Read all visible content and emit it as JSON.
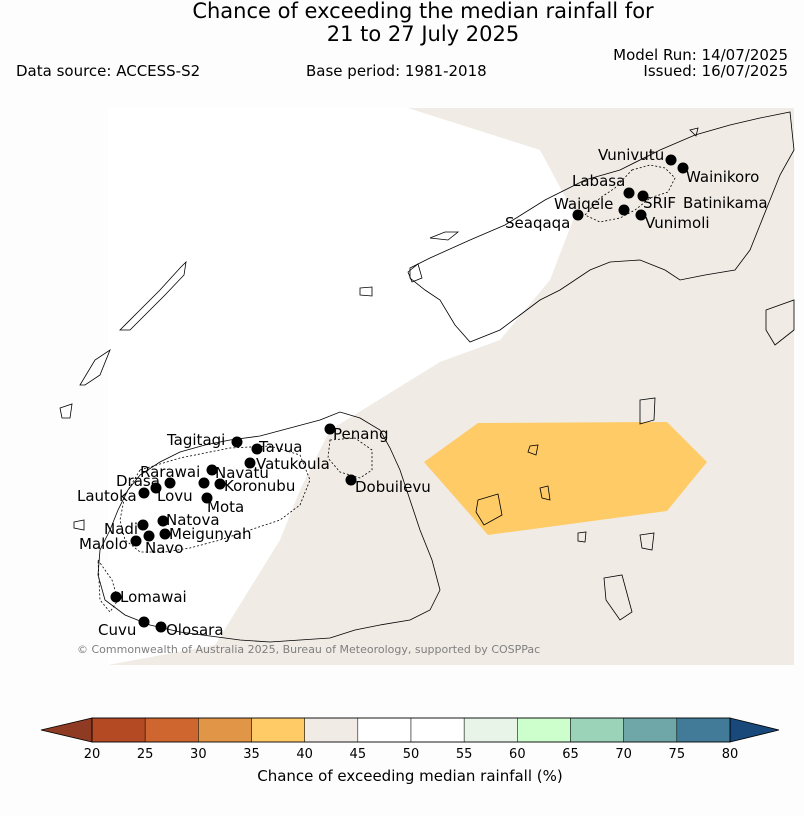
{
  "header": {
    "title_line1": "Chance of exceeding the median rainfall for",
    "title_line2": "21 to 27 July 2025",
    "data_source": "Data source: ACCESS-S2",
    "base_period": "Base period: 1981-2018",
    "model_run": "Model Run: 14/07/2025",
    "issued": "Issued: 16/07/2025"
  },
  "map": {
    "copyright": "© Commonwealth of Australia 2025, Bureau of Meteorology, supported by COSPPac",
    "places": [
      "Vunivutu",
      "Wainikoro",
      "Labasa",
      "Waiqele",
      "SRIF",
      "Batinikama",
      "Seaqaqa",
      "Vunimoli",
      "Penang",
      "Tagitagi",
      "Tavua",
      "Vatukoula",
      "Rarawai",
      "Navatu",
      "Koronubu",
      "Drasa",
      "Lautoka",
      "Lovu",
      "Mota",
      "Dobuilevu",
      "Natova",
      "Nadi",
      "Meigunyah",
      "Malolo",
      "Navo",
      "Lomawai",
      "Cuvu",
      "Olosara"
    ],
    "colors": {
      "land_outline": "#000000",
      "above_45_55": "#f0ebe5",
      "neutral": "#ffffff",
      "below_35_40": "#fecb67"
    }
  },
  "colorbar": {
    "title": "Chance of exceeding median rainfall (%)",
    "ticks": [
      "20",
      "25",
      "30",
      "35",
      "40",
      "45",
      "50",
      "55",
      "60",
      "65",
      "70",
      "75",
      "80"
    ],
    "colors": [
      "#8f3a22",
      "#b34a24",
      "#cf662f",
      "#e19546",
      "#fecb67",
      "#f0ebe5",
      "#ffffff",
      "#ffffff",
      "#e9f4e8",
      "#ccffcc",
      "#9ad3b8",
      "#6fa6a8",
      "#427b98",
      "#18497a"
    ]
  }
}
